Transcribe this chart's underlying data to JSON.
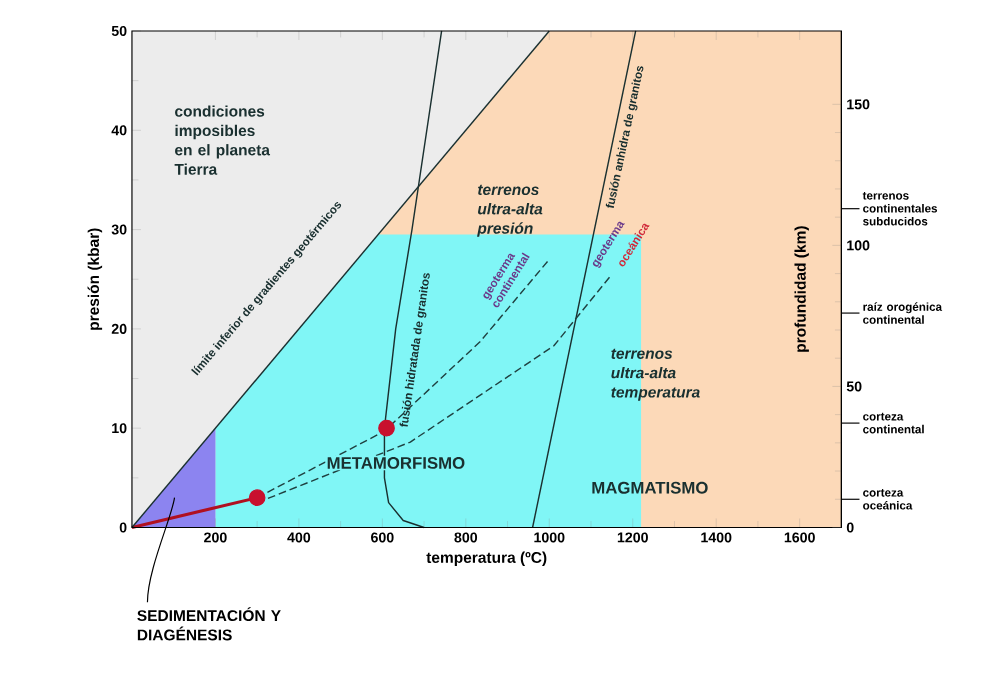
{
  "chart_data": {
    "type": "line",
    "xlabel": "temperatura (ºC)",
    "ylabel": "presión (kbar)",
    "y2label": "profundidad (km)",
    "xlim": [
      0,
      1700
    ],
    "ylim": [
      0,
      50
    ],
    "y2lim": [
      0,
      176
    ],
    "xticks": [
      200,
      400,
      600,
      800,
      1000,
      1200,
      1400,
      1600
    ],
    "yticks": [
      0,
      10,
      20,
      30,
      40,
      50
    ],
    "y2ticks": [
      0,
      50,
      100,
      150
    ],
    "series": [
      {
        "type": "area",
        "color": "#fcd9b8",
        "x": [
          590,
          1000,
          1700
        ],
        "values": [
          29.5,
          50,
          50
        ]
      },
      {
        "type": "area",
        "color": "#80f6f6",
        "x": [
          200,
          590,
          1220
        ],
        "values": [
          10,
          29.5,
          29.5
        ]
      },
      {
        "type": "area",
        "color": "#8c84f0",
        "x": [
          0,
          200
        ],
        "values": [
          0,
          10
        ]
      },
      {
        "color": "#b01020",
        "x": [
          0,
          300
        ],
        "values": [
          0,
          3
        ]
      },
      {
        "color": "#1a3030",
        "x": [
          0,
          1000
        ],
        "values": [
          0,
          50
        ]
      },
      {
        "color": "#1a3030",
        "x": [
          700,
          650,
          615,
          605,
          605,
          632,
          671,
          742
        ],
        "values": [
          0,
          0.7,
          2.5,
          5,
          10,
          20,
          30,
          50
        ]
      },
      {
        "color": "#1a3030",
        "x": [
          960,
          1207
        ],
        "values": [
          0,
          50
        ]
      },
      {
        "color": "#1f4040",
        "line_style": "dashed",
        "x": [
          300,
          605,
          834,
          1000
        ],
        "values": [
          3,
          9.7,
          18.7,
          27
        ]
      },
      {
        "color": "#1f4040",
        "line_style": "dashed",
        "x": [
          300,
          667,
          1011,
          1150
        ],
        "values": [
          2.5,
          8.6,
          18.3,
          25.5
        ]
      },
      {
        "type": "scatter",
        "color": "#c8102e",
        "marker": "circle",
        "x": [
          300,
          610
        ],
        "values": [
          3,
          10
        ]
      }
    ],
    "bands": [
      {
        "axis": "y",
        "from": 0,
        "to": 50,
        "color": "#ececec"
      }
    ],
    "ref_lines": [
      {
        "axis": "y2",
        "value": 113,
        "label": "terrenos continentales subducidos"
      },
      {
        "axis": "y2",
        "value": 76,
        "label": "raíz orogénica continental"
      },
      {
        "axis": "y2",
        "value": 37,
        "label": "corteza continental"
      },
      {
        "axis": "y2",
        "value": 10,
        "label": "corteza oceánica"
      }
    ],
    "annotations": [
      "condiciones imposibles en el planeta Tierra",
      "terrenos ultra-alta presión",
      "terrenos ultra-alta temperatura",
      "METAMORFISMO",
      "MAGMATISMO",
      "límite inferior de gradientes geotérmicos",
      "fusión hidratada de granitos",
      "fusión anhidra de granitos",
      "geoterma continental",
      "geoterma",
      "oceánica",
      "SEDIMENTACIÓN Y DIAGÉNESIS"
    ]
  }
}
